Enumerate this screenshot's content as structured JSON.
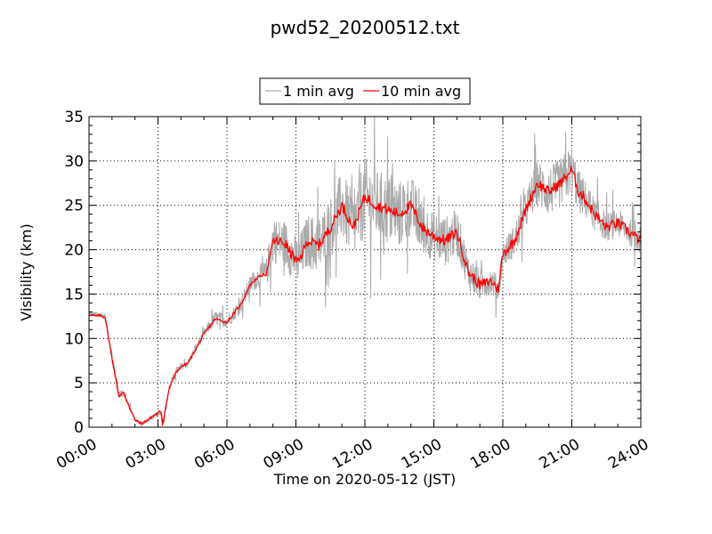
{
  "chart_data": {
    "type": "line",
    "title": "pwd52_20200512.txt",
    "xlabel": "Time on 2020-05-12 (JST)",
    "ylabel": "Visibility (km)",
    "xlim_hours": [
      0,
      24
    ],
    "ylim": [
      0,
      35
    ],
    "grid": true,
    "legend_placement": "top-center above plot",
    "x_ticks": [
      "00:00",
      "03:00",
      "06:00",
      "09:00",
      "12:00",
      "15:00",
      "18:00",
      "21:00",
      "24:00"
    ],
    "y_ticks": [
      0,
      5,
      10,
      15,
      20,
      25,
      30,
      35
    ],
    "series": [
      {
        "name": "1 min avg",
        "color": "#aaaaaa",
        "style": "noisy",
        "x_hours": [
          0,
          0.5,
          0.7,
          1.0,
          1.3,
          1.5,
          2.0,
          2.3,
          3.0,
          3.1,
          3.2,
          3.5,
          3.8,
          4.0,
          4.3,
          5.0,
          5.5,
          6.0,
          6.3,
          6.6,
          7.0,
          7.3,
          7.5,
          7.7,
          8.0,
          8.5,
          8.8,
          9.1,
          9.5,
          10.0,
          10.5,
          11.0,
          11.5,
          12.0,
          12.5,
          13.0,
          13.5,
          14.0,
          14.5,
          15.0,
          15.5,
          16.0,
          16.5,
          17.0,
          17.5,
          17.8,
          18.0,
          18.5,
          19.0,
          19.5,
          20.0,
          20.5,
          21.0,
          21.3,
          21.5,
          22.0,
          22.5,
          23.0,
          23.5,
          24.0
        ],
        "values": [
          12.8,
          12.6,
          12.5,
          8.0,
          3.8,
          3.8,
          0.8,
          0.4,
          1.5,
          1.8,
          0.5,
          4.5,
          6.3,
          6.8,
          7.2,
          10.5,
          12.3,
          12.0,
          12.8,
          13.8,
          16.0,
          16.8,
          17.1,
          17.2,
          21.0,
          20.8,
          19.5,
          18.5,
          21.0,
          20.5,
          22.5,
          25.0,
          22.5,
          26.0,
          25.0,
          24.5,
          24.0,
          25.0,
          22.5,
          21.5,
          21.0,
          22.0,
          17.5,
          16.0,
          16.5,
          15.5,
          19.5,
          21.0,
          24.5,
          27.5,
          26.5,
          27.5,
          29.0,
          26.5,
          26.0,
          24.0,
          22.5,
          23.0,
          22.0,
          21.0
        ],
        "noise_amplitude": [
          0.3,
          0.3,
          0.4,
          0.6,
          0.5,
          0.4,
          0.2,
          0.2,
          0.3,
          0.3,
          0.5,
          0.5,
          0.5,
          0.4,
          0.4,
          0.5,
          0.8,
          0.8,
          0.8,
          0.9,
          1.0,
          1.2,
          1.4,
          1.6,
          2.5,
          2.6,
          2.7,
          2.8,
          3.0,
          3.3,
          3.5,
          3.8,
          3.8,
          4.5,
          4.0,
          4.0,
          3.8,
          3.5,
          3.0,
          2.8,
          2.8,
          2.6,
          2.0,
          1.8,
          1.5,
          1.5,
          1.5,
          1.8,
          2.2,
          2.6,
          2.8,
          2.8,
          2.8,
          2.5,
          2.2,
          1.8,
          1.6,
          1.6,
          1.5,
          1.5
        ]
      },
      {
        "name": "10 min avg",
        "color": "#ff0000",
        "style": "smooth",
        "x_hours": [
          0,
          0.3,
          0.5,
          0.7,
          1.0,
          1.3,
          1.5,
          2.0,
          2.3,
          2.6,
          3.0,
          3.15,
          3.2,
          3.5,
          3.8,
          4.0,
          4.3,
          5.0,
          5.5,
          6.0,
          6.3,
          6.6,
          7.0,
          7.3,
          7.5,
          7.7,
          8.0,
          8.5,
          8.8,
          9.1,
          9.5,
          10.0,
          10.5,
          11.0,
          11.5,
          12.0,
          12.5,
          13.0,
          13.5,
          14.0,
          14.5,
          15.0,
          15.5,
          16.0,
          16.5,
          17.0,
          17.5,
          17.8,
          18.0,
          18.5,
          19.0,
          19.5,
          20.0,
          20.5,
          21.0,
          21.3,
          21.5,
          22.0,
          22.5,
          23.0,
          23.5,
          24.0
        ],
        "values": [
          12.7,
          12.5,
          12.6,
          12.4,
          7.8,
          3.5,
          3.9,
          0.8,
          0.4,
          0.9,
          1.6,
          1.8,
          0.3,
          4.5,
          6.2,
          6.8,
          7.2,
          10.5,
          12.2,
          11.8,
          12.8,
          13.8,
          16.0,
          16.8,
          17.1,
          17.2,
          21.0,
          20.8,
          19.5,
          18.5,
          21.0,
          20.5,
          22.5,
          25.0,
          22.5,
          26.0,
          25.0,
          24.5,
          24.0,
          25.0,
          22.5,
          21.5,
          21.0,
          22.0,
          17.5,
          16.0,
          16.5,
          15.5,
          19.5,
          21.0,
          24.5,
          27.5,
          26.5,
          27.5,
          29.0,
          26.5,
          26.0,
          24.0,
          22.5,
          23.0,
          22.0,
          21.0
        ]
      }
    ]
  }
}
